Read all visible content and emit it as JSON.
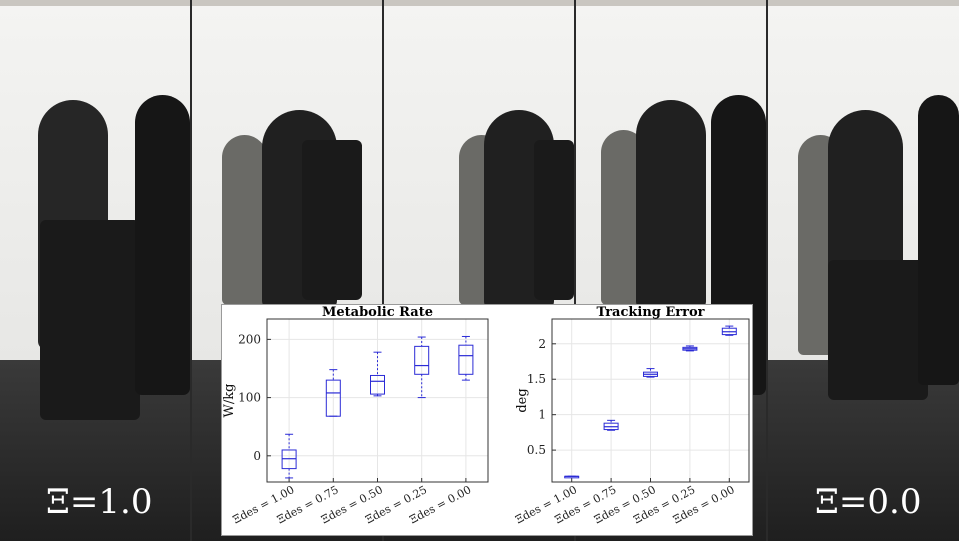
{
  "video": {
    "left_label": "Ξ=1.0",
    "right_label": "Ξ=0.0"
  },
  "colors": {
    "box": "#2b2bd6",
    "grid": "#e6e6e6",
    "axis": "#333333"
  },
  "chart_data": [
    {
      "type": "box",
      "title": "Metabolic Rate",
      "ylabel": "W/kg",
      "xlabel": "",
      "categories": [
        "Ξdes = 1.00",
        "Ξdes = 0.75",
        "Ξdes = 0.50",
        "Ξdes = 0.25",
        "Ξdes = 0.00"
      ],
      "yticks": [
        0,
        100,
        200
      ],
      "ytick_labels": [
        "0",
        "100",
        "200"
      ],
      "ylim": [
        -45,
        235
      ],
      "grid": true,
      "boxes": [
        {
          "whisker_low": -38,
          "q1": -22,
          "median": -5,
          "q3": 10,
          "whisker_high": 37
        },
        {
          "whisker_low": 68,
          "q1": 68,
          "median": 108,
          "q3": 130,
          "whisker_high": 148
        },
        {
          "whisker_low": 103,
          "q1": 106,
          "median": 128,
          "q3": 138,
          "whisker_high": 178
        },
        {
          "whisker_low": 100,
          "q1": 140,
          "median": 155,
          "q3": 188,
          "whisker_high": 204
        },
        {
          "whisker_low": 130,
          "q1": 140,
          "median": 172,
          "q3": 190,
          "whisker_high": 205
        }
      ]
    },
    {
      "type": "box",
      "title": "Tracking Error",
      "ylabel": "deg",
      "xlabel": "",
      "categories": [
        "Ξdes = 1.00",
        "Ξdes = 0.75",
        "Ξdes = 0.50",
        "Ξdes = 0.25",
        "Ξdes = 0.00"
      ],
      "yticks": [
        0.5,
        1,
        1.5,
        2
      ],
      "ytick_labels": [
        "0.5",
        "1",
        "1.5",
        "2"
      ],
      "ylim": [
        0.05,
        2.35
      ],
      "grid": true,
      "boxes": [
        {
          "whisker_low": 0.13,
          "q1": 0.13,
          "median": 0.13,
          "q3": 0.13,
          "whisker_high": 0.13
        },
        {
          "whisker_low": 0.78,
          "q1": 0.79,
          "median": 0.83,
          "q3": 0.88,
          "whisker_high": 0.92
        },
        {
          "whisker_low": 1.53,
          "q1": 1.54,
          "median": 1.57,
          "q3": 1.6,
          "whisker_high": 1.65
        },
        {
          "whisker_low": 1.9,
          "q1": 1.91,
          "median": 1.93,
          "q3": 1.95,
          "whisker_high": 1.97
        },
        {
          "whisker_low": 2.12,
          "q1": 2.13,
          "median": 2.17,
          "q3": 2.22,
          "whisker_high": 2.25
        }
      ]
    }
  ]
}
